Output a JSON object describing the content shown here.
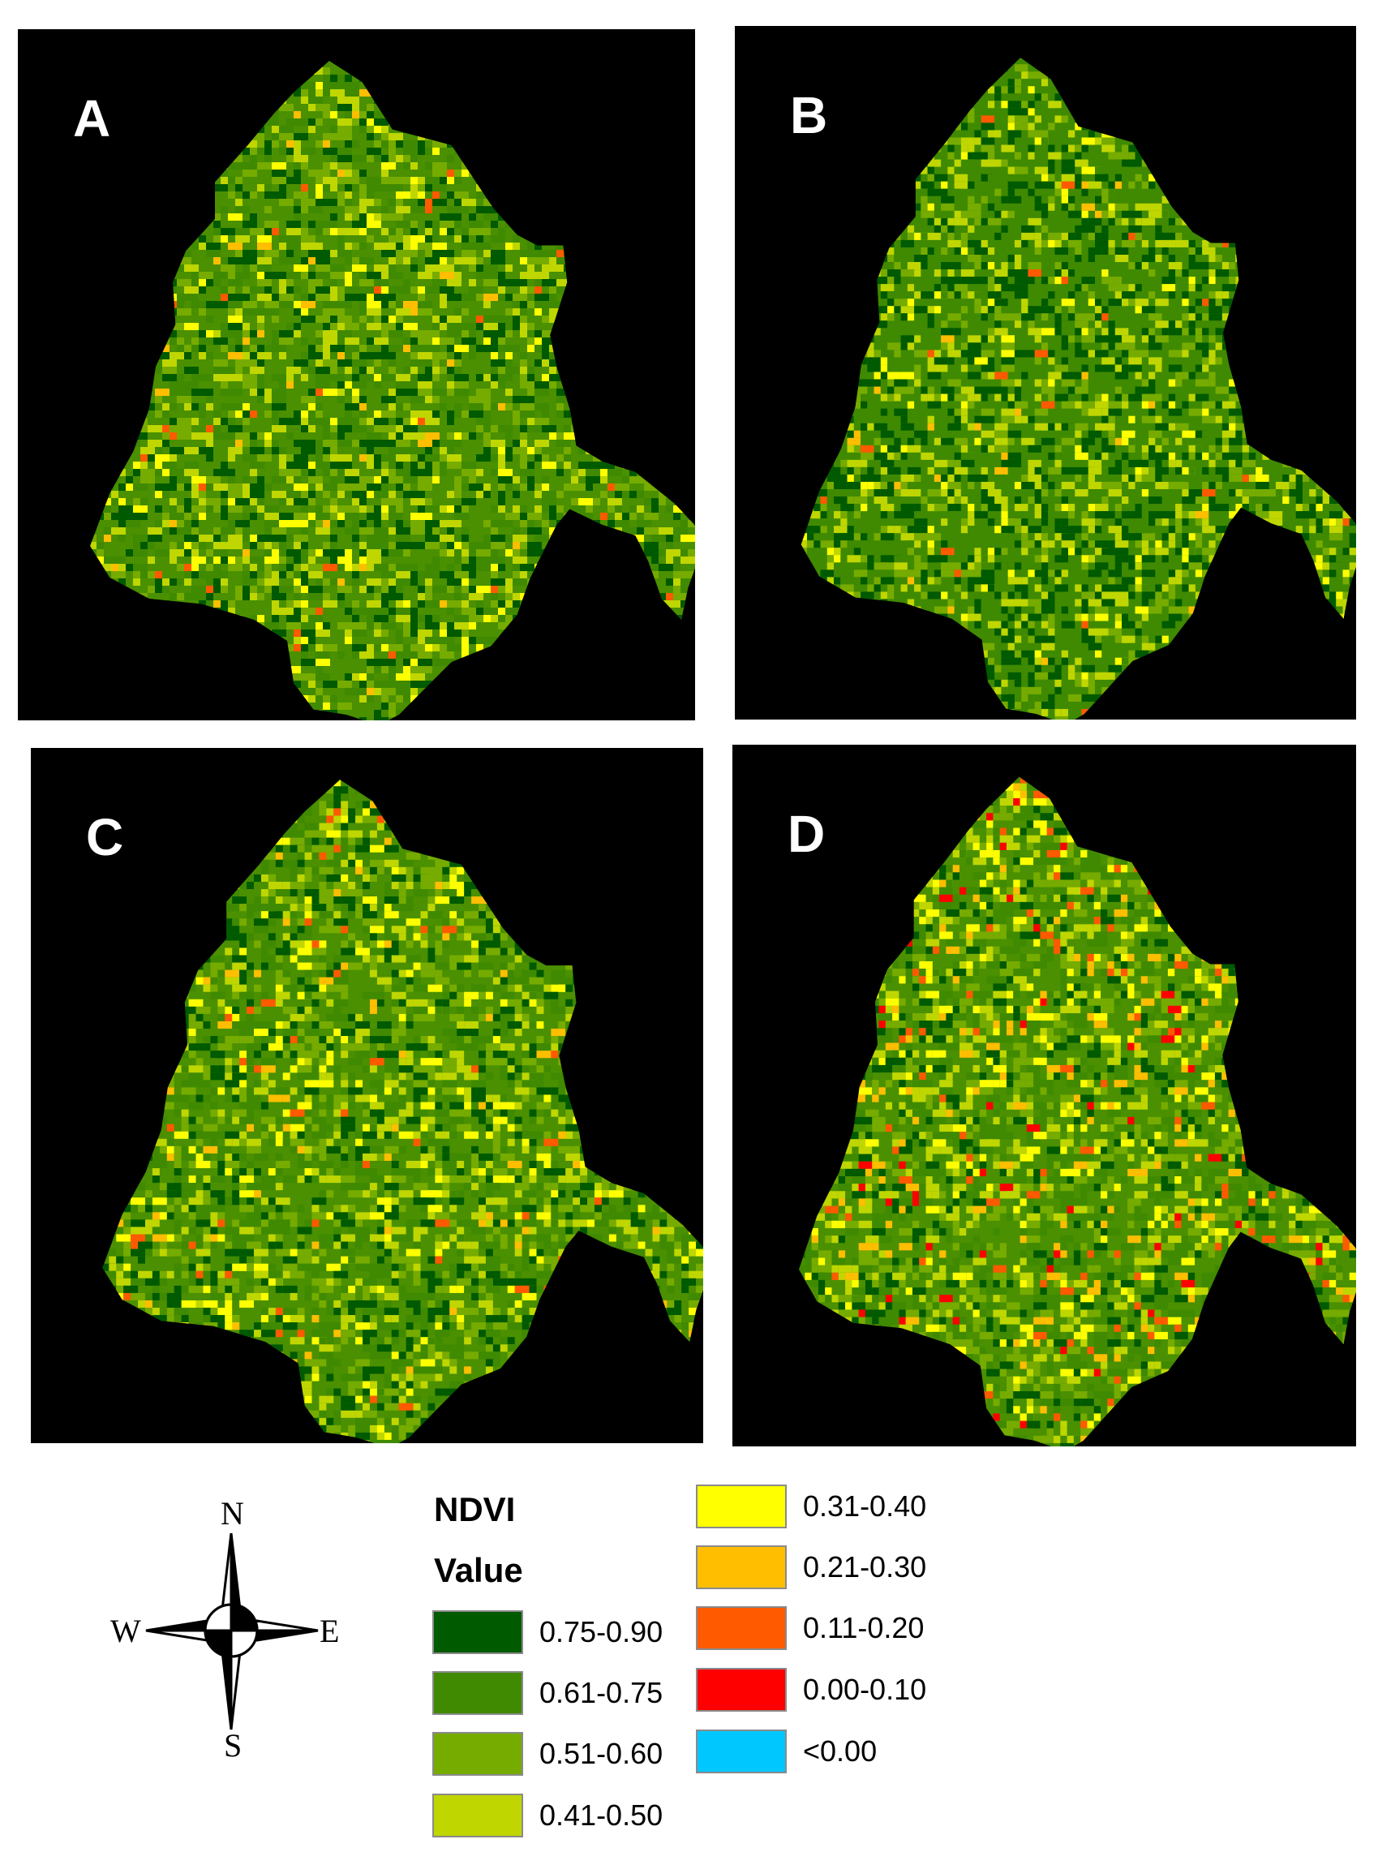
{
  "panels": [
    {
      "id": "a",
      "label": "A",
      "variant": 1
    },
    {
      "id": "b",
      "label": "B",
      "variant": 2
    },
    {
      "id": "c",
      "label": "C",
      "variant": 3
    },
    {
      "id": "d",
      "label": "D",
      "variant": 4
    }
  ],
  "compass": {
    "north": "N",
    "south": "S",
    "east": "E",
    "west": "W"
  },
  "legend": {
    "title_line1": "NDVI",
    "title_line2": "Value",
    "classes": [
      {
        "label": "0.75-0.90",
        "color": "#005a00"
      },
      {
        "label": "0.61-0.75",
        "color": "#3f8a00"
      },
      {
        "label": "0.51-0.60",
        "color": "#76ab00"
      },
      {
        "label": "0.41-0.50",
        "color": "#bfd600"
      },
      {
        "label": "0.31-0.40",
        "color": "#ffff00"
      },
      {
        "label": "0.21-0.30",
        "color": "#ffbe00"
      },
      {
        "label": "0.11-0.20",
        "color": "#ff5a00"
      },
      {
        "label": "0.00-0.10",
        "color": "#ff0000"
      },
      {
        "label": "<0.00",
        "color": "#00c8ff"
      }
    ]
  }
}
